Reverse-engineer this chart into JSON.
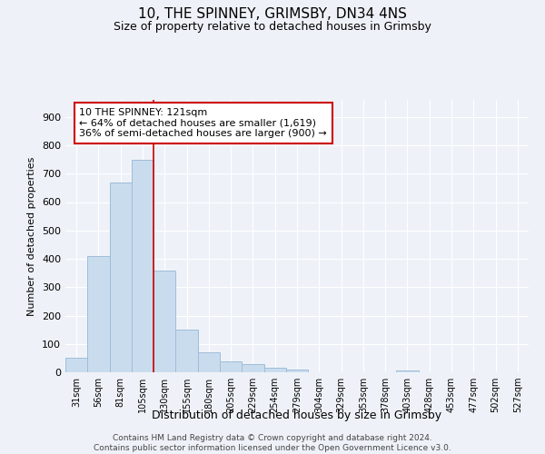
{
  "title1": "10, THE SPINNEY, GRIMSBY, DN34 4NS",
  "title2": "Size of property relative to detached houses in Grimsby",
  "xlabel": "Distribution of detached houses by size in Grimsby",
  "ylabel": "Number of detached properties",
  "bar_labels": [
    "31sqm",
    "56sqm",
    "81sqm",
    "105sqm",
    "130sqm",
    "155sqm",
    "180sqm",
    "205sqm",
    "229sqm",
    "254sqm",
    "279sqm",
    "304sqm",
    "329sqm",
    "353sqm",
    "378sqm",
    "403sqm",
    "428sqm",
    "453sqm",
    "477sqm",
    "502sqm",
    "527sqm"
  ],
  "bar_values": [
    50,
    410,
    670,
    750,
    358,
    150,
    70,
    37,
    28,
    17,
    10,
    0,
    0,
    0,
    0,
    8,
    0,
    0,
    0,
    0,
    0
  ],
  "bar_color": "#c9dcee",
  "bar_edge_color": "#a0bcd8",
  "property_line_x": 4.0,
  "property_line_color": "#cc0000",
  "annotation_text": "10 THE SPINNEY: 121sqm\n← 64% of detached houses are smaller (1,619)\n36% of semi-detached houses are larger (900) →",
  "annotation_box_color": "#ffffff",
  "annotation_box_edge_color": "#cc0000",
  "ylim": [
    0,
    960
  ],
  "yticks": [
    0,
    100,
    200,
    300,
    400,
    500,
    600,
    700,
    800,
    900
  ],
  "footer1": "Contains HM Land Registry data © Crown copyright and database right 2024.",
  "footer2": "Contains public sector information licensed under the Open Government Licence v3.0.",
  "bg_color": "#eef2f8",
  "grid_color": "#ffffff"
}
